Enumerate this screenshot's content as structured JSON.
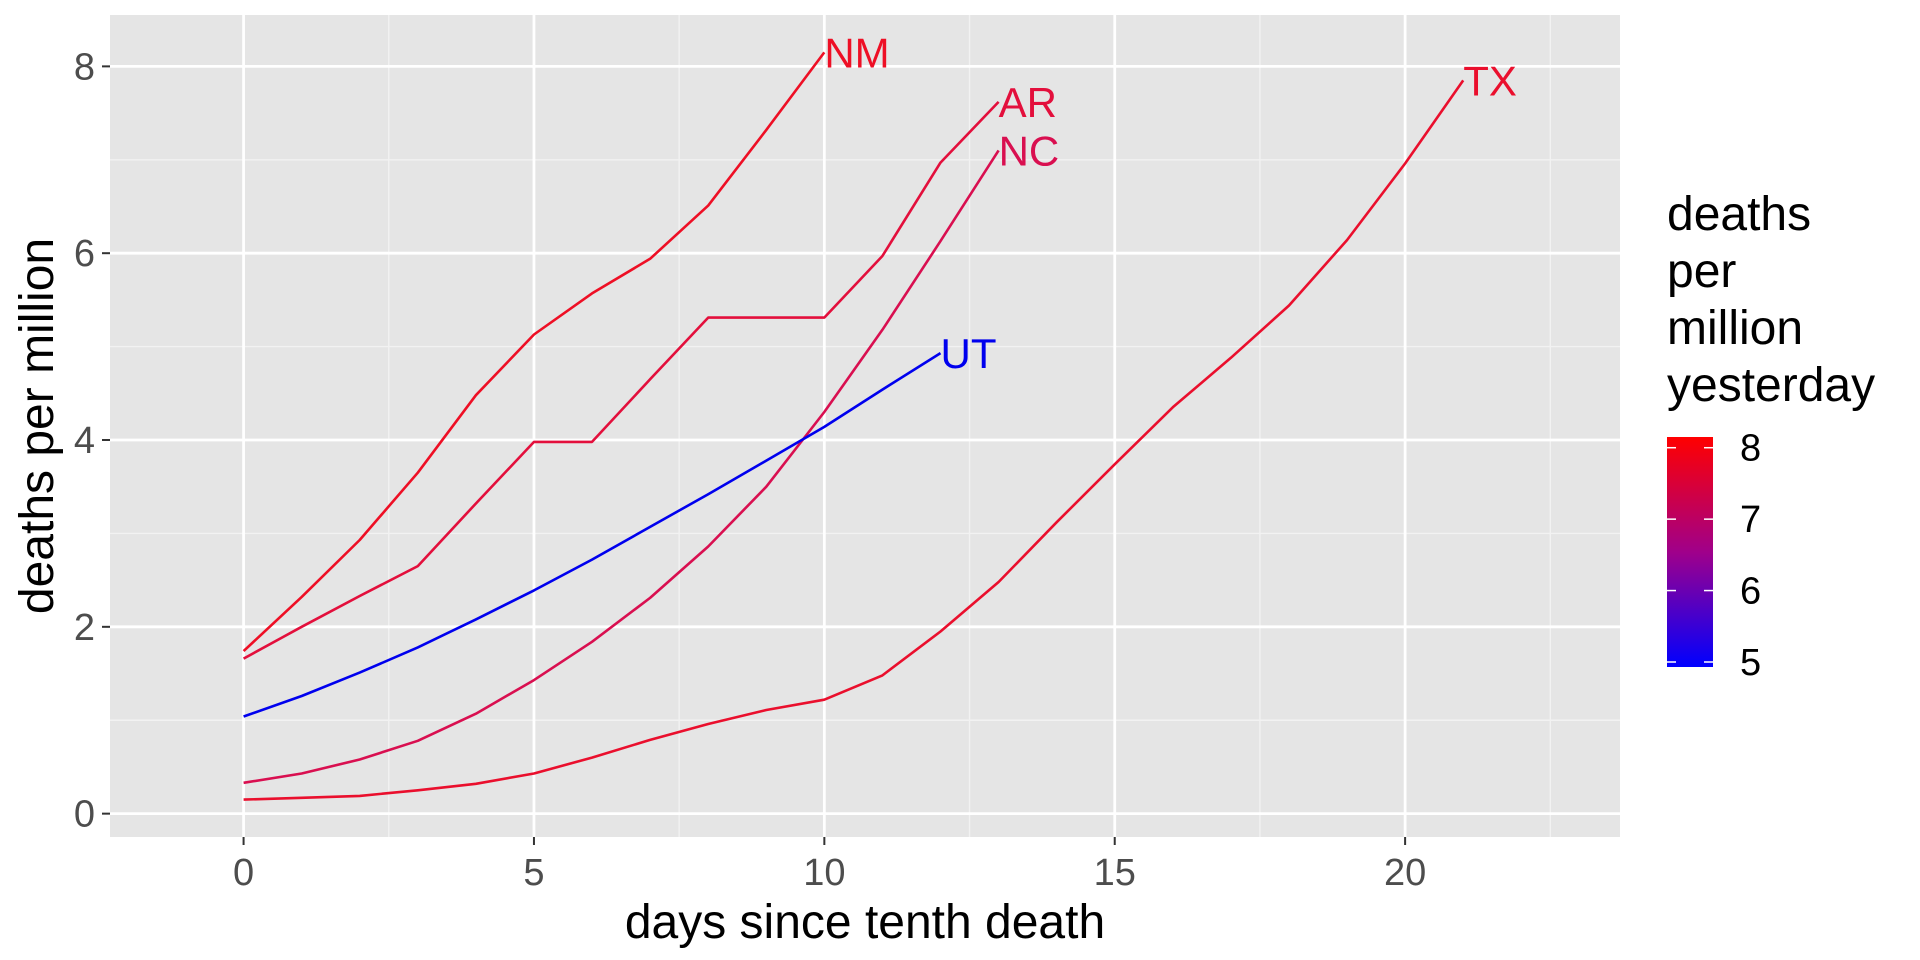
{
  "chart_data": {
    "type": "line",
    "xlabel": "days since tenth death",
    "ylabel": "deaths per million",
    "xlim": [
      -2.3,
      23.7
    ],
    "ylim": [
      -0.25,
      8.55
    ],
    "x_ticks": [
      0,
      5,
      10,
      15,
      20
    ],
    "y_ticks": [
      0,
      2,
      4,
      6,
      8
    ],
    "x_tick_labels": [
      "0",
      "5",
      "10",
      "15",
      "20"
    ],
    "y_tick_labels": [
      "0",
      "2",
      "4",
      "6",
      "8"
    ],
    "grid": true,
    "background": "#e5e5e5",
    "series": [
      {
        "name": "NM",
        "color": "#ee0f25",
        "legend_value": 8.15,
        "x": [
          0,
          1,
          2,
          3,
          4,
          5,
          6,
          7,
          8,
          9,
          10
        ],
        "y": [
          1.74,
          2.32,
          2.93,
          3.65,
          4.48,
          5.13,
          5.57,
          5.94,
          6.51,
          7.32,
          8.15
        ]
      },
      {
        "name": "AR",
        "color": "#e30f3c",
        "legend_value": 7.62,
        "x": [
          0,
          1,
          2,
          3,
          4,
          5,
          6,
          7,
          8,
          9,
          10,
          11,
          12,
          13
        ],
        "y": [
          1.66,
          2.0,
          2.33,
          2.65,
          3.32,
          3.98,
          3.98,
          4.65,
          5.31,
          5.31,
          5.31,
          5.97,
          6.97,
          7.62
        ]
      },
      {
        "name": "NC",
        "color": "#d90f50",
        "legend_value": 7.1,
        "x": [
          0,
          1,
          2,
          3,
          4,
          5,
          6,
          7,
          8,
          9,
          10,
          11,
          12,
          13
        ],
        "y": [
          0.33,
          0.43,
          0.58,
          0.78,
          1.07,
          1.43,
          1.84,
          2.31,
          2.86,
          3.5,
          4.3,
          5.18,
          6.13,
          7.1
        ]
      },
      {
        "name": "UT",
        "color": "#0000ee",
        "legend_value": 4.93,
        "x": [
          0,
          1,
          2,
          3,
          4,
          5,
          6,
          7,
          8,
          9,
          10,
          11,
          12
        ],
        "y": [
          1.04,
          1.26,
          1.51,
          1.78,
          2.08,
          2.39,
          2.72,
          3.07,
          3.42,
          3.78,
          4.14,
          4.54,
          4.93
        ]
      },
      {
        "name": "TX",
        "color": "#ea0f2d",
        "legend_value": 7.85,
        "x": [
          0,
          1,
          2,
          3,
          4,
          5,
          6,
          7,
          8,
          9,
          10,
          11,
          12,
          13,
          14,
          15,
          16,
          17,
          18,
          19,
          20,
          21
        ],
        "y": [
          0.15,
          0.17,
          0.19,
          0.25,
          0.32,
          0.43,
          0.6,
          0.79,
          0.96,
          1.11,
          1.22,
          1.48,
          1.95,
          2.48,
          3.12,
          3.74,
          4.35,
          4.88,
          5.44,
          6.14,
          6.96,
          7.85
        ]
      }
    ],
    "legend": {
      "title_lines": [
        "deaths",
        "per",
        "million",
        "yesterday"
      ],
      "ticks": [
        8,
        7,
        6,
        5
      ],
      "tick_labels": [
        "8",
        "7",
        "6",
        "5"
      ],
      "range": [
        4.93,
        8.15
      ],
      "low_color": "#0000ff",
      "high_color": "#ff0000",
      "placement": "right"
    }
  }
}
